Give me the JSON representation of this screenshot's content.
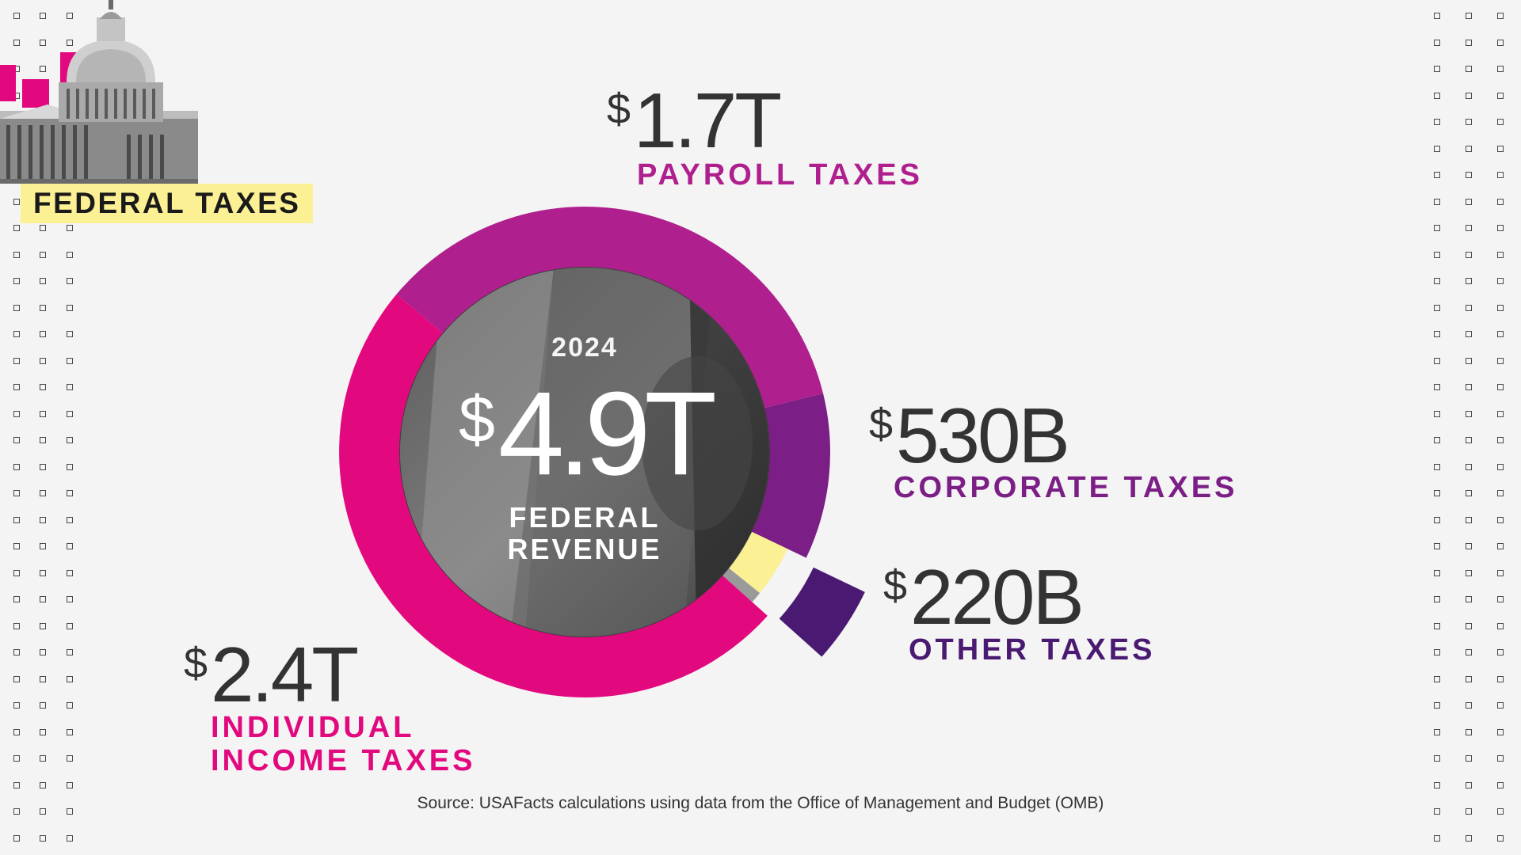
{
  "badge": "FEDERAL TAXES",
  "currency_symbol": "$",
  "center": {
    "year": "2024",
    "total_value": "4.9T",
    "label_line1": "FEDERAL",
    "label_line2": "REVENUE"
  },
  "segments": [
    {
      "key": "individual",
      "amount": "2.4T",
      "label_lines": [
        "INDIVIDUAL",
        "INCOME TAXES"
      ],
      "color": "#e2087e"
    },
    {
      "key": "payroll",
      "amount": "1.7T",
      "label_lines": [
        "PAYROLL TAXES"
      ],
      "color": "#b01f8e"
    },
    {
      "key": "corporate",
      "amount": "530B",
      "label_lines": [
        "CORPORATE TAXES"
      ],
      "color": "#7b1e85"
    },
    {
      "key": "other",
      "amount": "220B",
      "label_lines": [
        "OTHER TAXES"
      ],
      "color": "#4a1a72"
    }
  ],
  "chart_data": {
    "type": "pie",
    "variant": "donut",
    "categories": [
      "Individual income taxes",
      "Payroll taxes",
      "Corporate taxes",
      "Other taxes"
    ],
    "values": [
      2400,
      1700,
      530,
      220
    ],
    "units": "billions of dollars",
    "total": 4900,
    "title": "2024 Federal Revenue",
    "highlighted": "Other taxes"
  },
  "source": "Source: USAFacts calculations using data from the Office of Management and Budget (OMB)",
  "colors": {
    "background": "#f4f4f4",
    "badge": "#fbf094",
    "individual": "#e2087e",
    "payroll": "#b01f8e",
    "corporate": "#7b1e85",
    "other": "#4a1a72",
    "callout_yellow": "#fbf094",
    "gap_gray": "#9a9a9a"
  },
  "icons": [
    "capitol-dome-image",
    "money-bill-photo"
  ]
}
